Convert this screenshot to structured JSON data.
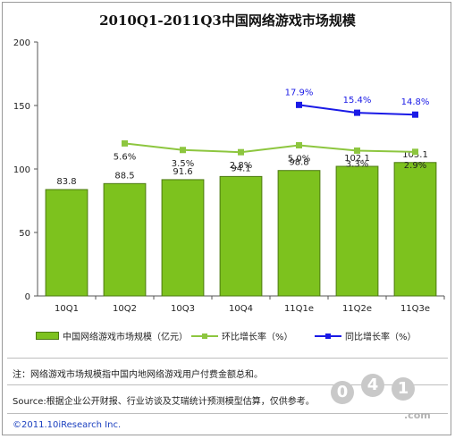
{
  "title": "2010Q1-2011Q3中国网络游戏市场规模",
  "legend": {
    "bar": "中国网络游戏市场规模（亿元）",
    "qoq": "环比增长率（%）",
    "yoy": "同比增长率（%）"
  },
  "notes": {
    "note": "注：网络游戏市场规模指中国内地网络游戏用户付费金额总和。",
    "source": "Source:根据企业公开财报、行业访谈及艾瑞统计预测模型估算，仅供参考。",
    "copyright": "©2011.10iResearch Inc."
  },
  "watermark": {
    "digits": [
      "0",
      "4",
      "1"
    ],
    "domain": ".com"
  },
  "colors": {
    "bar": "#7dc21e",
    "bar_edge": "#4d7a12",
    "qoq": "#8dc63f",
    "yoy": "#1a1ae6",
    "label_blue": "#1a1ae6"
  },
  "chart_data": {
    "type": "bar",
    "title": "2010Q1-2011Q3中国网络游戏市场规模",
    "categories": [
      "10Q1",
      "10Q2",
      "10Q3",
      "10Q4",
      "11Q1e",
      "11Q2e",
      "11Q3e"
    ],
    "ylim": [
      0,
      200
    ],
    "yticks": [
      0,
      50,
      100,
      150,
      200
    ],
    "grid": false,
    "legend_position": "bottom",
    "series": [
      {
        "name": "中国网络游戏市场规模（亿元）",
        "type": "bar",
        "values": [
          83.8,
          88.5,
          91.6,
          94.1,
          98.8,
          102.1,
          105.1
        ],
        "labels": [
          "83.8",
          "88.5",
          "91.6",
          "94.1",
          "98.8",
          "102.1",
          "105.1"
        ]
      },
      {
        "name": "环比增长率（%）",
        "type": "line",
        "values": [
          null,
          5.6,
          3.5,
          2.8,
          5.0,
          3.3,
          2.9
        ],
        "labels": [
          null,
          "5.6%",
          "3.5%",
          "2.8%",
          "5.0%",
          "3.3%",
          "2.9%"
        ]
      },
      {
        "name": "同比增长率（%）",
        "type": "line",
        "values": [
          null,
          null,
          null,
          null,
          17.9,
          15.4,
          14.8
        ],
        "labels": [
          null,
          null,
          null,
          null,
          "17.9%",
          "15.4%",
          "14.8%"
        ]
      }
    ]
  }
}
